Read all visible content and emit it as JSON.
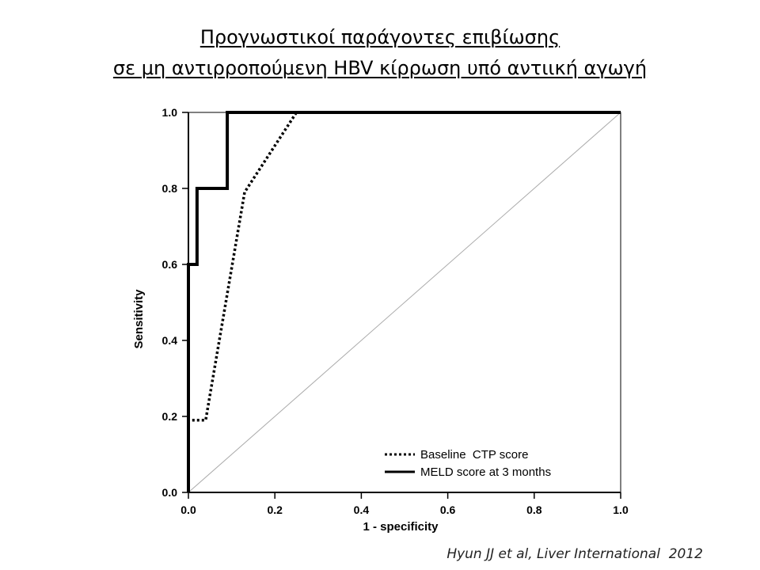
{
  "slide": {
    "title_line1": "Προγνωστικοί παράγοντες επιβίωσης",
    "title_line2": "σε μη αντιρροπούμενη HBV κίρρωση υπό αντιική αγωγή",
    "citation": "Hyun JJ et al, Liver International  2012"
  },
  "chart_data": {
    "type": "line",
    "title": "",
    "xlabel": "1 - specificity",
    "ylabel": "Sensitivity",
    "xlim": [
      0.0,
      1.0
    ],
    "ylim": [
      0.0,
      1.0
    ],
    "xticks": [
      "0.0",
      "0.2",
      "0.4",
      "0.6",
      "0.8",
      "1.0"
    ],
    "yticks": [
      "0.0",
      "0.2",
      "0.4",
      "0.6",
      "0.8",
      "1.0"
    ],
    "grid": false,
    "legend_position": "bottom-right",
    "series": [
      {
        "name": "Baseline  CTP score",
        "style": "dotted",
        "color": "#000000",
        "x": [
          0.0,
          0.0,
          0.04,
          0.13,
          0.25,
          1.0
        ],
        "y": [
          0.0,
          0.19,
          0.19,
          0.79,
          1.0,
          1.0
        ]
      },
      {
        "name": "MELD score at 3 months",
        "style": "solid",
        "color": "#000000",
        "x": [
          0.0,
          0.0,
          0.0,
          0.02,
          0.02,
          0.09,
          0.09,
          1.0
        ],
        "y": [
          0.0,
          0.0,
          0.6,
          0.6,
          0.8,
          0.8,
          1.0,
          1.0
        ]
      },
      {
        "name": "",
        "style": "reference",
        "color": "#999999",
        "x": [
          0.0,
          1.0
        ],
        "y": [
          0.0,
          1.0
        ]
      }
    ]
  }
}
